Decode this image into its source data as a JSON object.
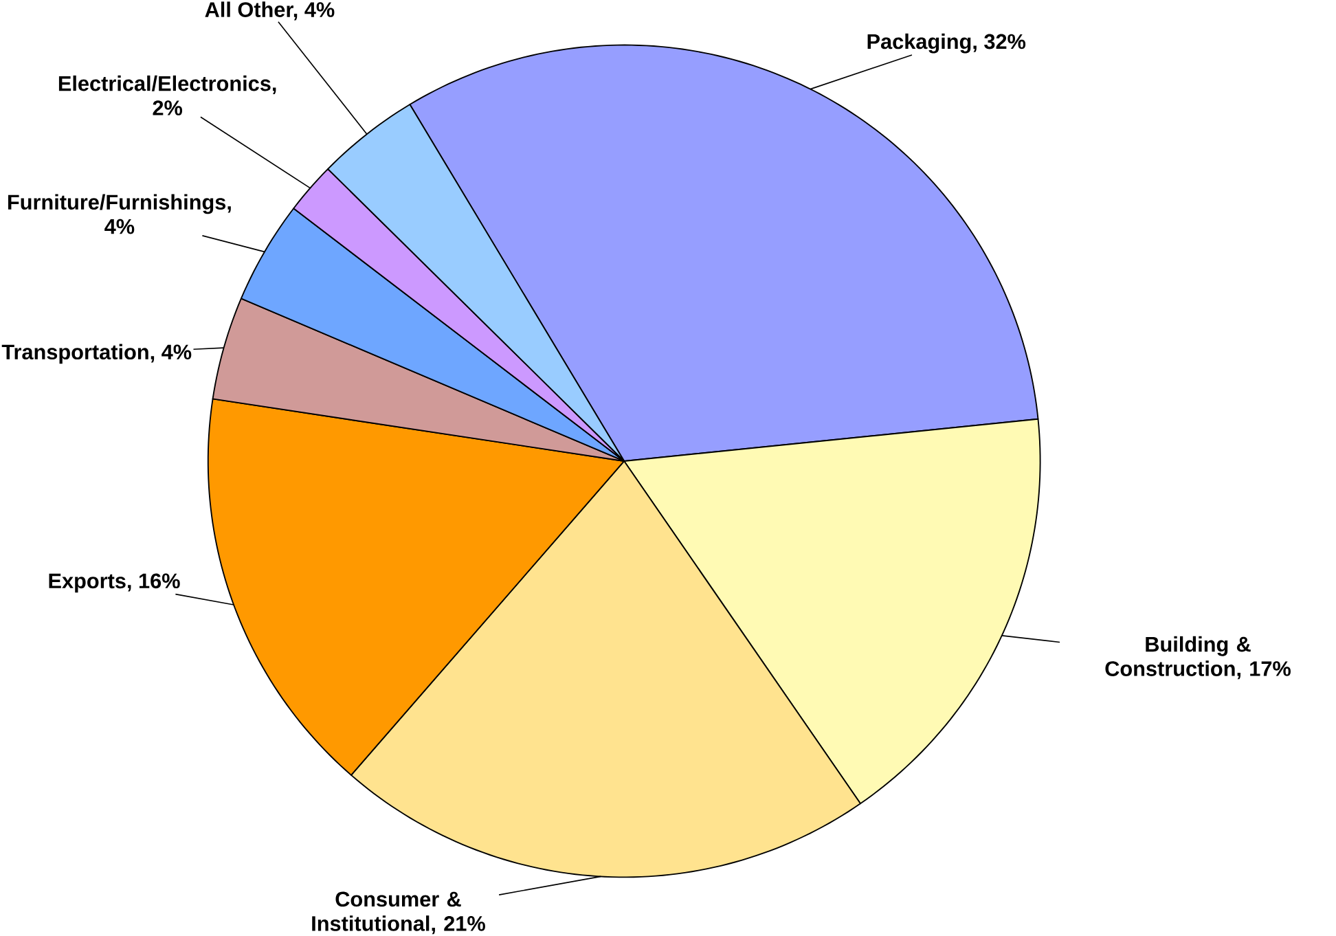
{
  "chart_data": {
    "type": "pie",
    "categories": [
      "Packaging, 32%",
      "Building & Construction, 17%",
      "Consumer & Institutional, 21%",
      "Exports, 16%",
      "Transportation, 4%",
      "Furniture/Furnishings, 4%",
      "Electrical/Electronics, 2%",
      "All Other, 4%"
    ],
    "values": [
      32,
      17,
      21,
      16,
      4,
      4,
      2,
      4
    ],
    "colors": [
      "#969eff",
      "#fffab4",
      "#ffe38f",
      "#ff9900",
      "#d09a98",
      "#6ea6ff",
      "#cc99ff",
      "#99ccff"
    ]
  }
}
